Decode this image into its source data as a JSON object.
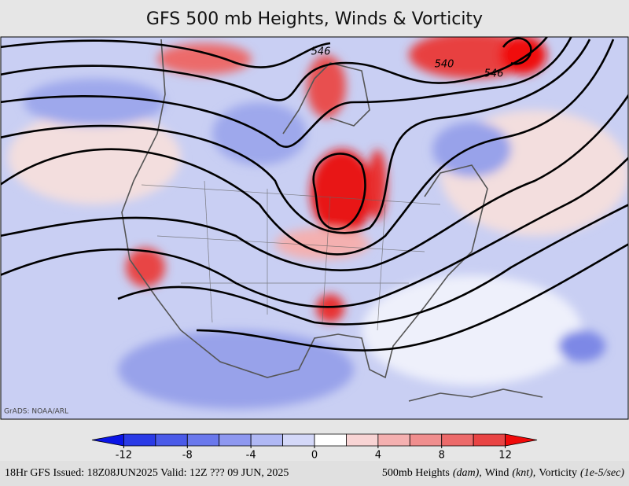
{
  "header": {
    "title": "GFS 500 mb Heights, Winds & Vorticity"
  },
  "map": {
    "contour_labels": [
      "546",
      "540",
      "546"
    ],
    "credit": "GrADS: NOAA/ARL"
  },
  "colorbar": {
    "bounds": [
      -14,
      -12,
      -10,
      -8,
      -6,
      -4,
      -2,
      0,
      2,
      4,
      6,
      8,
      10,
      12,
      14
    ],
    "colors": [
      "#0a14e6",
      "#2a3ae6",
      "#4a5ae8",
      "#6a78ec",
      "#8e98f0",
      "#b0b8f4",
      "#d4d8f8",
      "#ffffff",
      "#f8d4d4",
      "#f4b0b0",
      "#f08e8e",
      "#ec6a6a",
      "#e84444",
      "#f00a0a"
    ],
    "ticks": [
      -12,
      -8,
      -4,
      0,
      4,
      8,
      12
    ]
  },
  "footer": {
    "left": "18Hr GFS Issued: 18Z08JUN2025 Valid: 12Z ??? 09 JUN, 2025",
    "right": [
      {
        "text": "500mb Heights",
        "italic": false
      },
      {
        "text": "(dam),",
        "italic": true
      },
      {
        "text": "Wind",
        "italic": false
      },
      {
        "text": "(knt),",
        "italic": true
      },
      {
        "text": "Vorticity",
        "italic": false
      },
      {
        "text": "(1e-5/sec)",
        "italic": true
      }
    ]
  }
}
